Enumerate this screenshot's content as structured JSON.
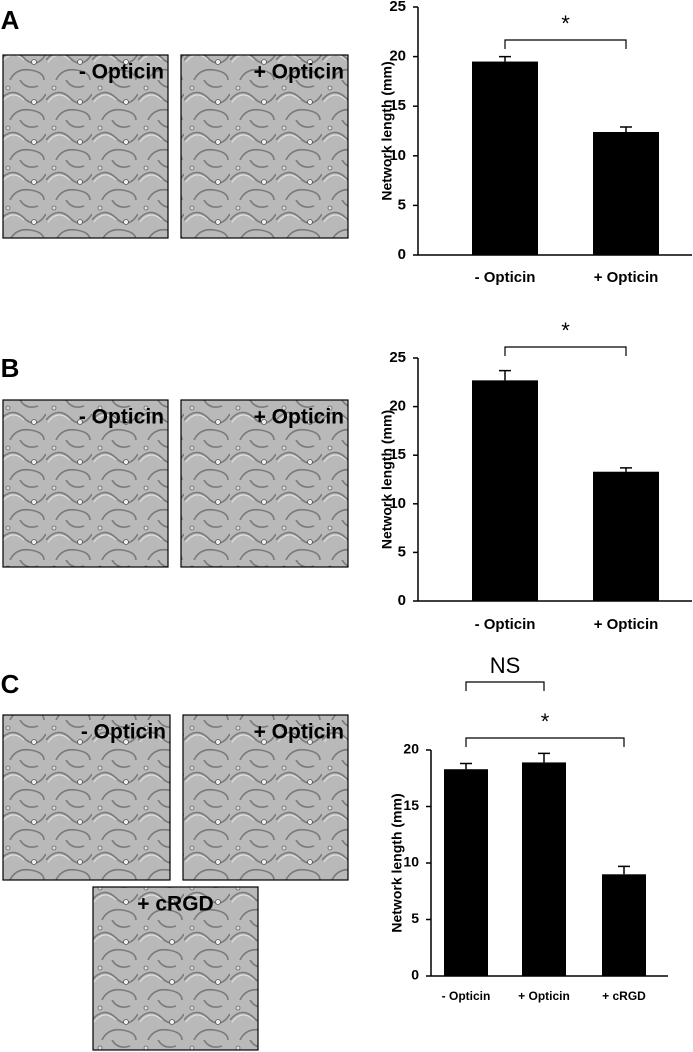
{
  "chart_data": [
    {
      "type": "bar",
      "panel": "A",
      "image_labels": [
        "- Opticin",
        "+ Opticin"
      ],
      "y_label": "Network length (mm)",
      "categories": [
        "- Opticin",
        "+ Opticin"
      ],
      "values": [
        19.5,
        12.4
      ],
      "errors": [
        0.5,
        0.5
      ],
      "color": "#000000",
      "ylim": [
        0,
        25
      ],
      "yticks": [
        0,
        5,
        10,
        15,
        20,
        25
      ],
      "brackets": [
        {
          "label": "*",
          "between": [
            0,
            1
          ]
        }
      ]
    },
    {
      "type": "bar",
      "panel": "B",
      "image_labels": [
        "- Opticin",
        "+ Opticin"
      ],
      "y_label": "Network length (mm)",
      "categories": [
        "- Opticin",
        "+ Opticin"
      ],
      "values": [
        22.7,
        13.3
      ],
      "errors": [
        1.0,
        0.4
      ],
      "color": "#000000",
      "ylim": [
        0,
        25
      ],
      "yticks": [
        0,
        5,
        10,
        15,
        20,
        25
      ],
      "brackets": [
        {
          "label": "*",
          "between": [
            0,
            1
          ]
        }
      ]
    },
    {
      "type": "bar",
      "panel": "C",
      "image_labels": [
        "- Opticin",
        "+ Opticin",
        "+ cRGD"
      ],
      "y_label": "Network length (mm)",
      "categories": [
        "- Opticin",
        "+ Opticin",
        "+ cRGD"
      ],
      "values": [
        18.3,
        18.9,
        9.0
      ],
      "errors": [
        0.5,
        0.8,
        0.7
      ],
      "color": "#000000",
      "ylim": [
        0,
        20
      ],
      "yticks": [
        0,
        5,
        10,
        15,
        20
      ],
      "brackets": [
        {
          "label": "NS",
          "between": [
            0,
            1
          ]
        },
        {
          "label": "*",
          "between": [
            0,
            2
          ]
        }
      ]
    }
  ]
}
